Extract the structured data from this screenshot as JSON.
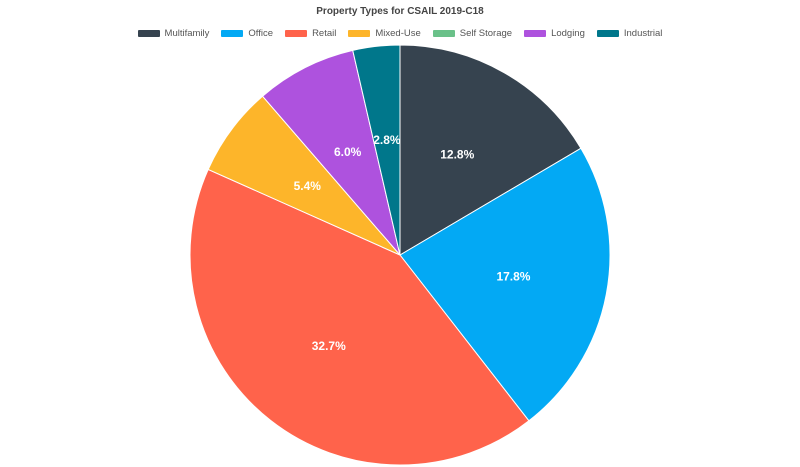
{
  "chart_data": {
    "type": "pie",
    "title": "Property Types for CSAIL 2019-C18",
    "legend_position": "top",
    "series": [
      {
        "name": "Multifamily",
        "value": 12.8,
        "label": "12.8%",
        "color": "#36434F"
      },
      {
        "name": "Office",
        "value": 17.8,
        "label": "17.8%",
        "color": "#03A9F4"
      },
      {
        "name": "Retail",
        "value": 32.7,
        "label": "32.7%",
        "color": "#FF634B"
      },
      {
        "name": "Mixed-Use",
        "value": 5.4,
        "label": "5.4%",
        "color": "#FDB52A"
      },
      {
        "name": "Self Storage",
        "value": 0,
        "label": "",
        "color": "#6AC189"
      },
      {
        "name": "Lodging",
        "value": 6.0,
        "label": "6.0%",
        "color": "#AE52DE"
      },
      {
        "name": "Industrial",
        "value": 2.8,
        "label": "2.8%",
        "color": "#00778B"
      }
    ]
  }
}
